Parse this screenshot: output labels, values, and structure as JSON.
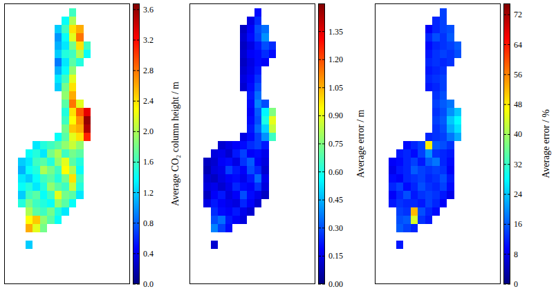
{
  "chart_data": [
    {
      "type": "heatmap",
      "tick_labels": false,
      "colorbar_label": "Average CO₂ column height / m",
      "colorbar_range": [
        0,
        3.68
      ],
      "colorbar_ticks": [
        {
          "value": 0,
          "label": "0.0"
        },
        0.4,
        0.8,
        1.2,
        1.6,
        {
          "value": 2,
          "label": "2.0"
        },
        2.4,
        2.8,
        3.2,
        3.6
      ],
      "values": [
        [
          null,
          null,
          null,
          null,
          null,
          null,
          null,
          1.6,
          null,
          null
        ],
        [
          null,
          null,
          null,
          null,
          null,
          null,
          1.4,
          2.0,
          null,
          null
        ],
        [
          null,
          null,
          null,
          null,
          null,
          1.2,
          1.6,
          2.4,
          2.6,
          null
        ],
        [
          null,
          null,
          null,
          null,
          null,
          1.0,
          1.4,
          2.2,
          2.8,
          null
        ],
        [
          null,
          null,
          null,
          null,
          null,
          1.1,
          1.3,
          1.8,
          2.4,
          1.6
        ],
        [
          null,
          null,
          null,
          null,
          null,
          1.2,
          1.5,
          1.6,
          2.0,
          1.4
        ],
        [
          null,
          null,
          null,
          null,
          null,
          0.9,
          1.3,
          1.7,
          1.5,
          null
        ],
        [
          null,
          null,
          null,
          null,
          null,
          1.1,
          1.4,
          1.9,
          null,
          null
        ],
        [
          null,
          null,
          null,
          null,
          null,
          1.3,
          1.6,
          2.2,
          null,
          null
        ],
        [
          null,
          null,
          null,
          null,
          null,
          1.2,
          1.8,
          2.4,
          null,
          null
        ],
        [
          null,
          null,
          null,
          null,
          null,
          null,
          1.9,
          2.6,
          null,
          null
        ],
        [
          null,
          null,
          null,
          null,
          null,
          null,
          1.7,
          2.8,
          2.2,
          null
        ],
        [
          null,
          null,
          null,
          null,
          null,
          null,
          1.5,
          2.4,
          2.9,
          3.3
        ],
        [
          null,
          null,
          null,
          null,
          null,
          null,
          1.6,
          2.3,
          2.7,
          3.6
        ],
        [
          null,
          null,
          null,
          null,
          null,
          null,
          1.8,
          2.5,
          2.6,
          3.5
        ],
        [
          null,
          null,
          null,
          null,
          null,
          1.4,
          1.7,
          2.2,
          2.4,
          3.1
        ],
        [
          null,
          null,
          1.3,
          1.5,
          1.6,
          1.7,
          1.9,
          2.1,
          1.9,
          null
        ],
        [
          null,
          1.4,
          1.5,
          1.3,
          1.8,
          2.0,
          1.6,
          1.8,
          1.7,
          null
        ],
        [
          1.2,
          1.3,
          1.6,
          1.7,
          1.5,
          1.9,
          2.2,
          1.7,
          1.5,
          null
        ],
        [
          1.1,
          1.4,
          1.5,
          2.0,
          1.8,
          1.6,
          2.3,
          2.0,
          1.4,
          null
        ],
        [
          1.3,
          1.2,
          1.4,
          1.6,
          1.7,
          1.5,
          1.8,
          2.4,
          1.6,
          null
        ],
        [
          1.4,
          1.5,
          1.3,
          1.5,
          1.9,
          1.7,
          1.6,
          2.1,
          1.5,
          null
        ],
        [
          1.2,
          1.6,
          1.7,
          1.4,
          1.6,
          2.2,
          1.8,
          1.7,
          1.3,
          null
        ],
        [
          1.5,
          1.8,
          1.6,
          1.5,
          1.4,
          1.9,
          1.7,
          1.4,
          null,
          null
        ],
        [
          null,
          2.0,
          1.7,
          1.6,
          1.8,
          1.5,
          1.3,
          null,
          null,
          null
        ],
        [
          null,
          2.3,
          2.5,
          1.9,
          1.7,
          1.4,
          null,
          null,
          null,
          null
        ],
        [
          null,
          2.6,
          2.2,
          1.8,
          null,
          null,
          null,
          null,
          null,
          null
        ],
        [
          null,
          null,
          null,
          null,
          null,
          null,
          null,
          null,
          null,
          null
        ],
        [
          null,
          1.2,
          null,
          null,
          null,
          null,
          null,
          null,
          null,
          null
        ]
      ]
    },
    {
      "type": "heatmap",
      "tick_labels": false,
      "colorbar_label": "Average error / m",
      "colorbar_range": [
        0,
        1.5
      ],
      "colorbar_ticks": [
        {
          "value": 0,
          "label": "0.00"
        },
        0.15,
        {
          "value": 0.3,
          "label": "0.30"
        },
        0.45,
        {
          "value": 0.6,
          "label": "0.60"
        },
        0.75,
        {
          "value": 0.9,
          "label": "0.90"
        },
        1.05,
        {
          "value": 1.2,
          "label": "1.20"
        },
        1.35
      ],
      "values": [
        [
          null,
          null,
          null,
          null,
          null,
          null,
          null,
          0.2,
          null,
          null
        ],
        [
          null,
          null,
          null,
          null,
          null,
          null,
          0.15,
          0.25,
          null,
          null
        ],
        [
          null,
          null,
          null,
          null,
          null,
          0.1,
          0.18,
          0.3,
          0.35,
          null
        ],
        [
          null,
          null,
          null,
          null,
          null,
          0.12,
          0.2,
          0.28,
          0.4,
          null
        ],
        [
          null,
          null,
          null,
          null,
          null,
          0.1,
          0.15,
          0.22,
          0.3,
          0.25
        ],
        [
          null,
          null,
          null,
          null,
          null,
          0.12,
          0.18,
          0.2,
          0.25,
          0.2
        ],
        [
          null,
          null,
          null,
          null,
          null,
          0.1,
          0.15,
          0.2,
          0.18,
          null
        ],
        [
          null,
          null,
          null,
          null,
          null,
          0.12,
          0.16,
          0.22,
          null,
          null
        ],
        [
          null,
          null,
          null,
          null,
          null,
          0.14,
          0.18,
          0.26,
          null,
          null
        ],
        [
          null,
          null,
          null,
          null,
          null,
          0.12,
          0.2,
          0.3,
          null,
          null
        ],
        [
          null,
          null,
          null,
          null,
          null,
          null,
          0.22,
          0.35,
          null,
          null
        ],
        [
          null,
          null,
          null,
          null,
          null,
          null,
          0.2,
          0.38,
          0.3,
          null
        ],
        [
          null,
          null,
          null,
          null,
          null,
          null,
          0.18,
          0.32,
          0.55,
          0.75
        ],
        [
          null,
          null,
          null,
          null,
          null,
          null,
          0.2,
          0.3,
          0.6,
          0.9
        ],
        [
          null,
          null,
          null,
          null,
          null,
          null,
          0.22,
          0.34,
          0.5,
          0.85
        ],
        [
          null,
          null,
          null,
          null,
          null,
          0.15,
          0.2,
          0.28,
          0.4,
          0.65
        ],
        [
          null,
          null,
          0.12,
          0.15,
          0.18,
          0.2,
          0.25,
          0.28,
          0.22,
          null
        ],
        [
          null,
          0.14,
          0.16,
          0.12,
          0.22,
          0.28,
          0.18,
          0.2,
          0.16,
          null
        ],
        [
          0.1,
          0.12,
          0.18,
          0.2,
          0.15,
          0.26,
          0.32,
          0.18,
          0.14,
          null
        ],
        [
          0.08,
          0.14,
          0.16,
          0.28,
          0.22,
          0.18,
          0.3,
          0.24,
          0.12,
          null
        ],
        [
          0.12,
          0.1,
          0.15,
          0.18,
          0.2,
          0.16,
          0.22,
          0.34,
          0.16,
          null
        ],
        [
          0.14,
          0.16,
          0.12,
          0.16,
          0.24,
          0.2,
          0.18,
          0.26,
          0.14,
          null
        ],
        [
          0.1,
          0.18,
          0.22,
          0.14,
          0.18,
          0.3,
          0.2,
          0.16,
          0.1,
          null
        ],
        [
          0.15,
          0.22,
          0.18,
          0.16,
          0.14,
          0.24,
          0.18,
          0.12,
          null,
          null
        ],
        [
          null,
          0.25,
          0.2,
          0.18,
          0.22,
          0.16,
          0.12,
          null,
          null,
          null
        ],
        [
          null,
          0.3,
          0.35,
          0.22,
          0.18,
          0.14,
          null,
          null,
          null,
          null
        ],
        [
          null,
          0.38,
          0.28,
          0.2,
          null,
          null,
          null,
          null,
          null,
          null
        ],
        [
          null,
          null,
          null,
          null,
          null,
          null,
          null,
          null,
          null,
          null
        ],
        [
          null,
          0.12,
          null,
          null,
          null,
          null,
          null,
          null,
          null,
          null
        ]
      ]
    },
    {
      "type": "heatmap",
      "tick_labels": false,
      "colorbar_label": "Average error / %",
      "colorbar_range": [
        0,
        75
      ],
      "colorbar_ticks": [
        0,
        8,
        16,
        24,
        32,
        40,
        48,
        56,
        64,
        72
      ],
      "values": [
        [
          null,
          null,
          null,
          null,
          null,
          null,
          null,
          14,
          null,
          null
        ],
        [
          null,
          null,
          null,
          null,
          null,
          null,
          12,
          14,
          null,
          null
        ],
        [
          null,
          null,
          null,
          null,
          null,
          9,
          12,
          14,
          15,
          null
        ],
        [
          null,
          null,
          null,
          null,
          null,
          12,
          15,
          13,
          16,
          null
        ],
        [
          null,
          null,
          null,
          null,
          null,
          10,
          12,
          13,
          14,
          16
        ],
        [
          null,
          null,
          null,
          null,
          null,
          11,
          13,
          14,
          13,
          15
        ],
        [
          null,
          null,
          null,
          null,
          null,
          12,
          13,
          12,
          13,
          null
        ],
        [
          null,
          null,
          null,
          null,
          null,
          11,
          12,
          13,
          null,
          null
        ],
        [
          null,
          null,
          null,
          null,
          null,
          12,
          13,
          14,
          null,
          null
        ],
        [
          null,
          null,
          null,
          null,
          null,
          11,
          12,
          14,
          null,
          null
        ],
        [
          null,
          null,
          null,
          null,
          null,
          null,
          13,
          15,
          null,
          null
        ],
        [
          null,
          null,
          null,
          null,
          null,
          null,
          14,
          16,
          18,
          null
        ],
        [
          null,
          null,
          null,
          null,
          null,
          null,
          13,
          15,
          20,
          24
        ],
        [
          null,
          null,
          null,
          null,
          null,
          null,
          14,
          16,
          24,
          28
        ],
        [
          null,
          null,
          null,
          null,
          null,
          null,
          13,
          15,
          22,
          26
        ],
        [
          null,
          null,
          null,
          null,
          null,
          12,
          13,
          14,
          18,
          22
        ],
        [
          null,
          null,
          10,
          12,
          14,
          48,
          16,
          15,
          13,
          null
        ],
        [
          null,
          11,
          12,
          10,
          14,
          20,
          13,
          12,
          11,
          null
        ],
        [
          9,
          10,
          12,
          14,
          11,
          16,
          18,
          12,
          10,
          null
        ],
        [
          8,
          11,
          12,
          16,
          14,
          13,
          14,
          13,
          9,
          null
        ],
        [
          10,
          9,
          12,
          13,
          14,
          12,
          13,
          15,
          11,
          null
        ],
        [
          12,
          14,
          10,
          12,
          15,
          13,
          12,
          14,
          10,
          null
        ],
        [
          9,
          12,
          15,
          11,
          13,
          14,
          13,
          11,
          8,
          null
        ],
        [
          11,
          13,
          12,
          12,
          11,
          14,
          12,
          9,
          null,
          null
        ],
        [
          null,
          14,
          13,
          52,
          15,
          12,
          10,
          null,
          null,
          null
        ],
        [
          null,
          15,
          16,
          44,
          13,
          11,
          null,
          null,
          null,
          null
        ],
        [
          null,
          16,
          14,
          12,
          null,
          null,
          null,
          null,
          null,
          null
        ],
        [
          null,
          null,
          null,
          null,
          null,
          null,
          null,
          null,
          null,
          null
        ],
        [
          null,
          11,
          null,
          null,
          null,
          null,
          null,
          null,
          null,
          null
        ]
      ]
    }
  ]
}
